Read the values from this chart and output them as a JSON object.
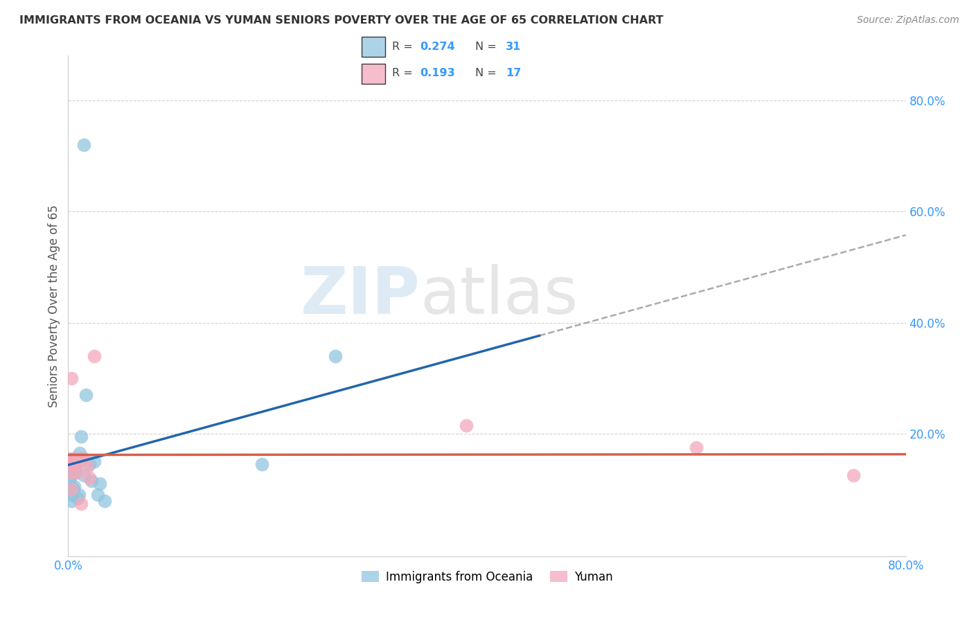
{
  "title": "IMMIGRANTS FROM OCEANIA VS YUMAN SENIORS POVERTY OVER THE AGE OF 65 CORRELATION CHART",
  "source": "Source: ZipAtlas.com",
  "ylabel": "Seniors Poverty Over the Age of 65",
  "right_yticks": [
    "80.0%",
    "60.0%",
    "40.0%",
    "20.0%"
  ],
  "right_ytick_vals": [
    0.8,
    0.6,
    0.4,
    0.2
  ],
  "xlim": [
    0.0,
    0.8
  ],
  "ylim": [
    -0.02,
    0.88
  ],
  "blue_color": "#92c5de",
  "blue_line_color": "#2166ac",
  "pink_color": "#f4a9bb",
  "pink_line_color": "#d6604d",
  "dashed_line_color": "#aaaaaa",
  "r_blue": 0.274,
  "n_blue": 31,
  "r_pink": 0.193,
  "n_pink": 17,
  "blue_scatter_x": [
    0.001,
    0.002,
    0.003,
    0.003,
    0.004,
    0.004,
    0.005,
    0.005,
    0.006,
    0.006,
    0.007,
    0.007,
    0.008,
    0.009,
    0.01,
    0.01,
    0.011,
    0.012,
    0.013,
    0.014,
    0.015,
    0.017,
    0.02,
    0.022,
    0.025,
    0.028,
    0.03,
    0.035,
    0.185,
    0.255,
    0.015
  ],
  "blue_scatter_y": [
    0.115,
    0.1,
    0.125,
    0.08,
    0.09,
    0.135,
    0.1,
    0.155,
    0.105,
    0.145,
    0.155,
    0.13,
    0.145,
    0.085,
    0.155,
    0.09,
    0.165,
    0.195,
    0.155,
    0.155,
    0.125,
    0.27,
    0.145,
    0.115,
    0.15,
    0.09,
    0.11,
    0.08,
    0.145,
    0.34,
    0.72
  ],
  "pink_scatter_x": [
    0.001,
    0.002,
    0.003,
    0.004,
    0.005,
    0.007,
    0.008,
    0.01,
    0.012,
    0.015,
    0.018,
    0.025,
    0.38,
    0.6,
    0.75,
    0.003,
    0.02
  ],
  "pink_scatter_y": [
    0.155,
    0.13,
    0.1,
    0.145,
    0.155,
    0.145,
    0.13,
    0.155,
    0.075,
    0.155,
    0.14,
    0.34,
    0.215,
    0.175,
    0.125,
    0.3,
    0.12
  ],
  "watermark_zip": "ZIP",
  "watermark_atlas": "atlas",
  "background_color": "#ffffff",
  "grid_color": "#d0d0d0",
  "legend_r_color": "#3399ff",
  "legend_n_color": "#3399ff",
  "legend_label_color": "#444444",
  "title_color": "#333333",
  "source_color": "#888888",
  "axis_tick_color": "#3399ff",
  "ylabel_color": "#555555"
}
